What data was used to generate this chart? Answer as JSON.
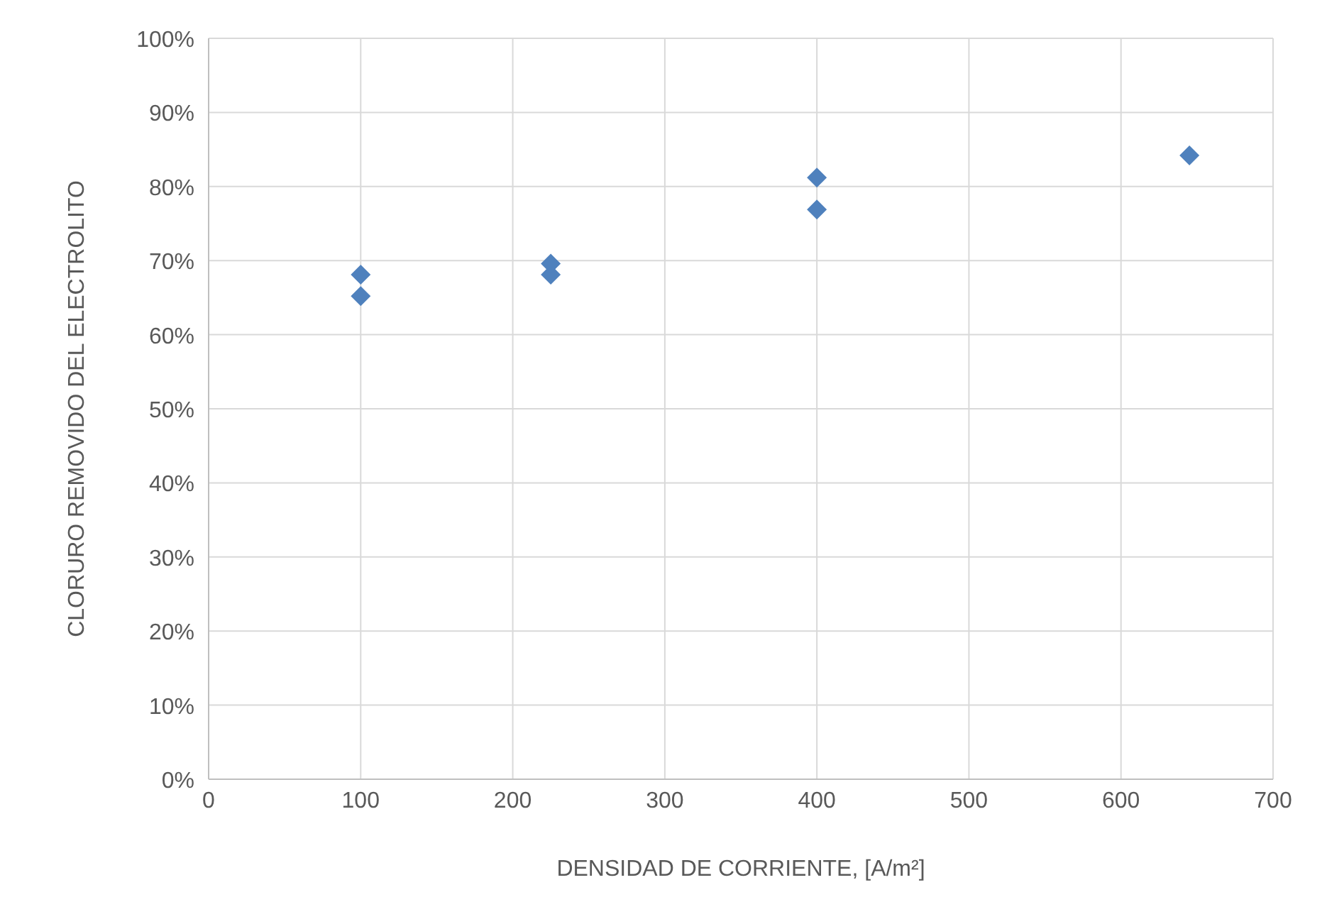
{
  "chart_data": {
    "type": "scatter",
    "xlabel": "DENSIDAD DE CORRIENTE, [A/m²]",
    "ylabel": "CLORURO REMOVIDO DEL ELECTROLITO",
    "x": [
      100,
      100,
      225,
      225,
      400,
      400,
      645
    ],
    "series": [
      {
        "color": "#4f81bd",
        "values": [
          68.1,
          65.2,
          68.1,
          69.6,
          81.2,
          76.9,
          84.2
        ]
      }
    ],
    "xlim": [
      0,
      700
    ],
    "xticks": [
      0,
      100,
      200,
      300,
      400,
      500,
      600,
      700
    ],
    "ylim": [
      0,
      100
    ],
    "yticks": [
      {
        "value": 0,
        "label": "0%"
      },
      {
        "value": 10,
        "label": "10%"
      },
      {
        "value": 20,
        "label": "20%"
      },
      {
        "value": 30,
        "label": "30%"
      },
      {
        "value": 40,
        "label": "40%"
      },
      {
        "value": 50,
        "label": "50%"
      },
      {
        "value": 60,
        "label": "60%"
      },
      {
        "value": 70,
        "label": "70%"
      },
      {
        "value": 80,
        "label": "80%"
      },
      {
        "value": 90,
        "label": "90%"
      },
      {
        "value": 100,
        "label": "100%"
      }
    ],
    "grid": true,
    "marker": "diamond"
  }
}
